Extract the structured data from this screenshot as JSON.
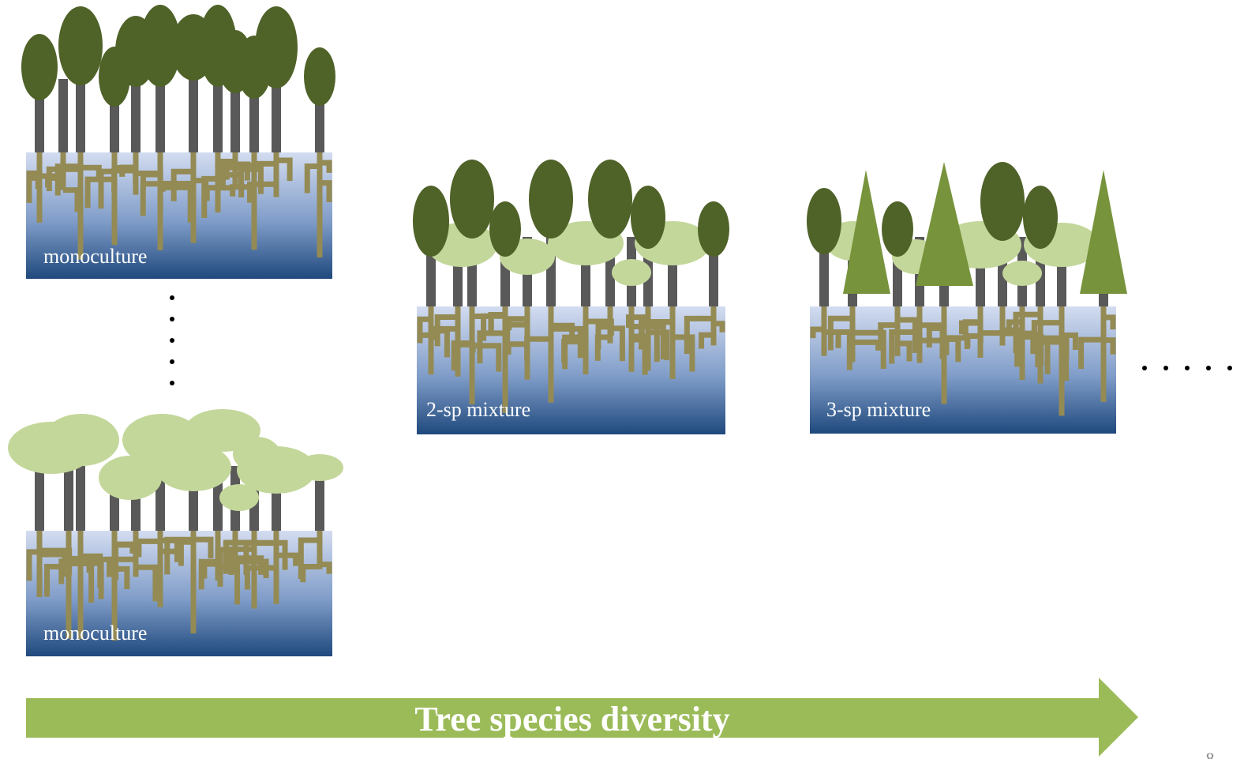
{
  "panels": [
    {
      "label": "monoculture"
    },
    {
      "label": "monoculture"
    },
    {
      "label": "2-sp mixture"
    },
    {
      "label": "3-sp mixture"
    }
  ],
  "arrow": {
    "label": "Tree species diversity"
  },
  "page_number": "8"
}
